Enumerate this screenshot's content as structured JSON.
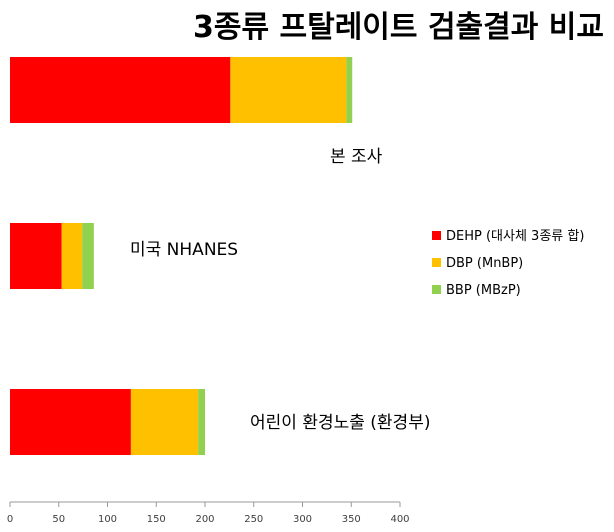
{
  "chart_data": {
    "type": "bar",
    "orientation": "horizontal",
    "stacked": true,
    "title": "3종류 프탈레이트 검출결과 비교",
    "categories": [
      "본 조사",
      "미국 NHANES",
      "어린이 환경노출 (환경부)"
    ],
    "series": [
      {
        "name": "DEHP (대사체 3종류 합)",
        "color": "#ff0000",
        "values": [
          226,
          53,
          124
        ]
      },
      {
        "name": "DBP (MnBP)",
        "color": "#ffc000",
        "values": [
          119,
          21,
          69
        ]
      },
      {
        "name": "BBP (MBzP)",
        "color": "#92d050",
        "values": [
          6,
          12,
          7
        ]
      }
    ],
    "xlim": [
      0,
      400
    ],
    "xticks": [
      0,
      50,
      100,
      150,
      200,
      250,
      300,
      350,
      400
    ],
    "xtick_labels": [
      "0",
      "50",
      "100",
      "150",
      "200",
      "250",
      "300",
      "350",
      "400"
    ],
    "grid": false,
    "legend_position": "right"
  }
}
